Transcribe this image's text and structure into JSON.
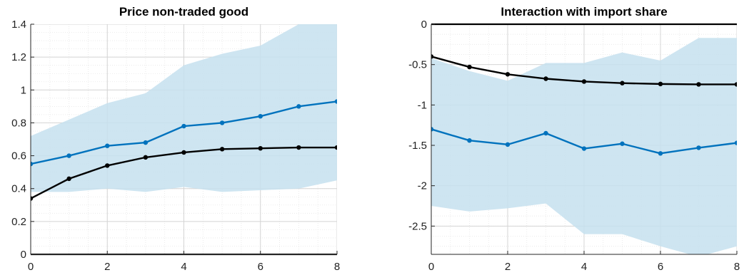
{
  "chart_data": [
    {
      "type": "line",
      "title": "Price non-traded good",
      "xlabel": "",
      "ylabel": "",
      "xlim": [
        0,
        8
      ],
      "ylim": [
        0,
        1.4
      ],
      "xticks": [
        0,
        2,
        4,
        6,
        8
      ],
      "yticks": [
        0,
        0.2,
        0.4,
        0.6,
        0.8,
        1,
        1.2,
        1.4
      ],
      "ytick_labels": [
        "0",
        "0.2",
        "0.4",
        "0.6",
        "0.8",
        "1",
        "1.2",
        "1.4"
      ],
      "grid": true,
      "x": [
        0,
        1,
        2,
        3,
        4,
        5,
        6,
        7,
        8
      ],
      "band": {
        "color": "#c6e0ee",
        "upper": [
          0.72,
          0.82,
          0.92,
          0.98,
          1.15,
          1.22,
          1.27,
          1.4,
          1.4
        ],
        "lower": [
          0.38,
          0.38,
          0.4,
          0.38,
          0.41,
          0.38,
          0.39,
          0.4,
          0.45
        ]
      },
      "series": [
        {
          "color": "#0072bd",
          "values": [
            0.55,
            0.6,
            0.66,
            0.68,
            0.78,
            0.8,
            0.84,
            0.9,
            0.93
          ]
        },
        {
          "color": "#000000",
          "values": [
            0.34,
            0.46,
            0.54,
            0.59,
            0.62,
            0.64,
            0.645,
            0.65,
            0.65
          ]
        }
      ]
    },
    {
      "type": "line",
      "title": "Interaction with import share",
      "xlabel": "",
      "ylabel": "",
      "xlim": [
        0,
        8
      ],
      "ylim": [
        -2.85,
        0
      ],
      "xticks": [
        0,
        2,
        4,
        6,
        8
      ],
      "yticks": [
        0,
        -0.5,
        -1,
        -1.5,
        -2,
        -2.5
      ],
      "ytick_labels": [
        "0",
        "-0.5",
        "-1",
        "-1.5",
        "-2",
        "-2.5"
      ],
      "grid": true,
      "x": [
        0,
        1,
        2,
        3,
        4,
        5,
        6,
        7,
        8
      ],
      "band": {
        "color": "#c6e0ee",
        "upper": [
          -0.42,
          -0.58,
          -0.7,
          -0.48,
          -0.48,
          -0.35,
          -0.45,
          -0.17,
          -0.17
        ],
        "lower": [
          -2.25,
          -2.32,
          -2.28,
          -2.22,
          -2.6,
          -2.6,
          -2.75,
          -2.88,
          -2.75
        ]
      },
      "series": [
        {
          "color": "#0072bd",
          "values": [
            -1.3,
            -1.44,
            -1.49,
            -1.35,
            -1.54,
            -1.48,
            -1.6,
            -1.53,
            -1.47
          ]
        },
        {
          "color": "#000000",
          "values": [
            -0.4,
            -0.53,
            -0.62,
            -0.675,
            -0.71,
            -0.73,
            -0.74,
            -0.745,
            -0.745
          ]
        }
      ]
    }
  ]
}
